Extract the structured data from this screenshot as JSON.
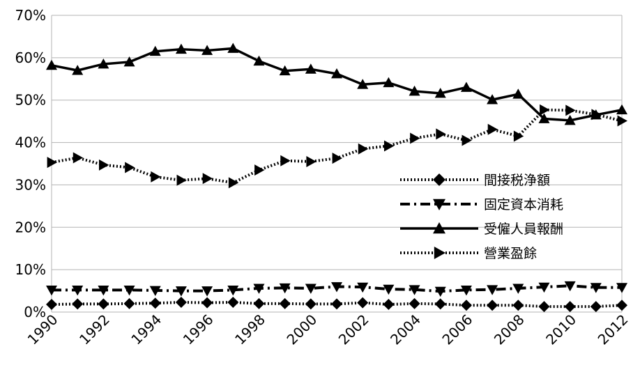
{
  "chart_data": {
    "type": "line",
    "title": "",
    "xlabel": "",
    "ylabel": "",
    "x": [
      1990,
      1991,
      1992,
      1993,
      1994,
      1995,
      1996,
      1997,
      1998,
      1999,
      2000,
      2001,
      2002,
      2003,
      2004,
      2005,
      2006,
      2007,
      2008,
      2009,
      2010,
      2011,
      2012
    ],
    "x_tick_labels": [
      "1990",
      "1992",
      "1994",
      "1996",
      "1998",
      "2000",
      "2002",
      "2004",
      "2006",
      "2008",
      "2010",
      "2012"
    ],
    "y_tick_labels": [
      "0%",
      "10%",
      "20%",
      "30%",
      "40%",
      "50%",
      "60%",
      "70%"
    ],
    "ylim": [
      0,
      70
    ],
    "grid": "horizontal",
    "legend_position": "right",
    "series": [
      {
        "name": "間接税浄額",
        "marker": "diamond",
        "line_style": "dotted",
        "values": [
          1.8,
          1.9,
          1.9,
          2.0,
          2.1,
          2.3,
          2.2,
          2.3,
          2.0,
          2.0,
          1.9,
          1.9,
          2.2,
          1.8,
          2.0,
          1.9,
          1.6,
          1.6,
          1.6,
          1.3,
          1.3,
          1.3,
          1.6
        ]
      },
      {
        "name": "固定資本消耗",
        "marker": "triangle-down",
        "line_style": "dashdot",
        "values": [
          5.2,
          5.2,
          5.2,
          5.2,
          5.1,
          5.0,
          5.0,
          5.2,
          5.6,
          5.7,
          5.6,
          6.0,
          5.9,
          5.4,
          5.3,
          4.9,
          5.2,
          5.3,
          5.6,
          5.9,
          6.2,
          5.8,
          5.8
        ]
      },
      {
        "name": "受僱人員報酬",
        "marker": "triangle-up",
        "line_style": "solid",
        "values": [
          58.2,
          57.0,
          58.5,
          59.0,
          61.5,
          62.0,
          61.7,
          62.2,
          59.2,
          56.9,
          57.3,
          56.2,
          53.7,
          54.1,
          52.1,
          51.6,
          53.0,
          50.1,
          51.4,
          45.6,
          45.2,
          46.5,
          47.7
        ]
      },
      {
        "name": "營業盈餘",
        "marker": "triangle-right",
        "line_style": "dotted",
        "values": [
          35.3,
          36.4,
          34.7,
          34.1,
          31.9,
          31.1,
          31.5,
          30.5,
          33.5,
          35.7,
          35.5,
          36.3,
          38.5,
          39.2,
          41.0,
          42.0,
          40.5,
          43.1,
          41.5,
          47.7,
          47.6,
          46.6,
          45.1
        ]
      }
    ]
  }
}
